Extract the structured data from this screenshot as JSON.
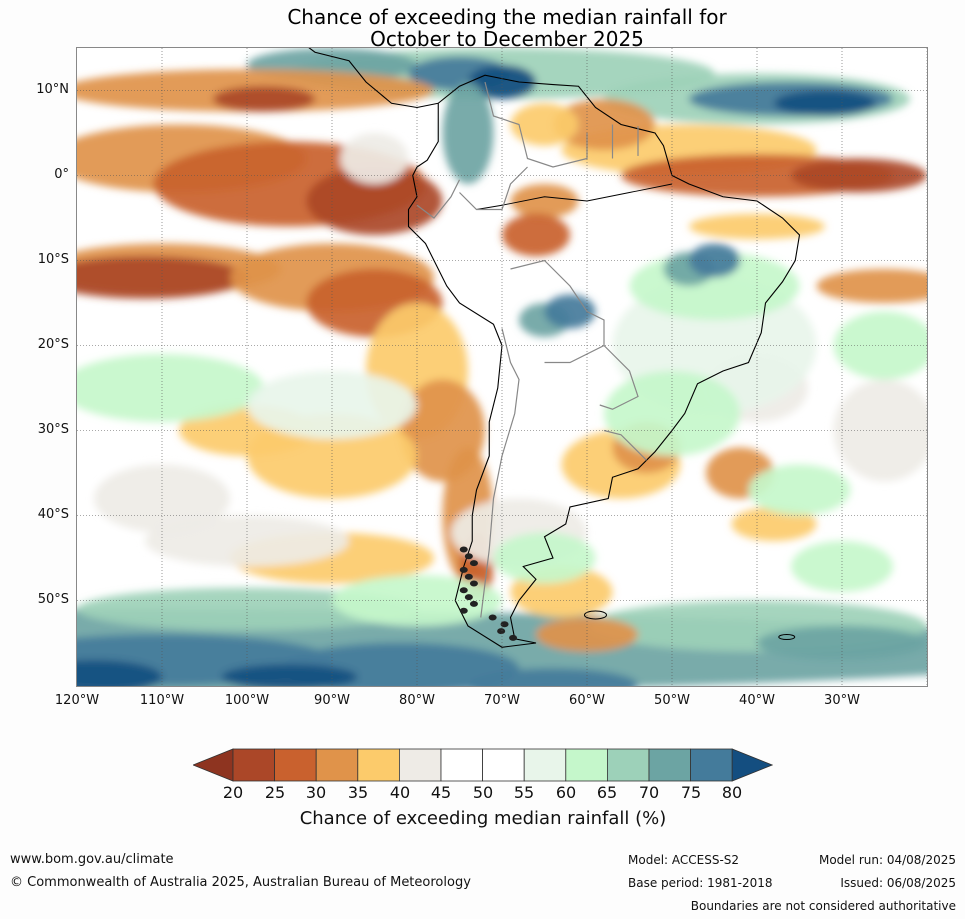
{
  "title": {
    "line1": "Chance of exceeding the median rainfall for",
    "line2": "October to December 2025"
  },
  "map": {
    "region": "South America and adjacent oceans",
    "lon_range": [
      -120,
      -20
    ],
    "lat_range": [
      -60,
      15
    ],
    "lat_labels": [
      "10°N",
      "0°",
      "10°S",
      "20°S",
      "30°S",
      "40°S",
      "50°S"
    ],
    "lon_labels": [
      "120°W",
      "110°W",
      "100°W",
      "90°W",
      "80°W",
      "70°W",
      "60°W",
      "50°W",
      "40°W",
      "30°W"
    ],
    "gridlines": "dotted"
  },
  "legend": {
    "ticks": [
      "20",
      "25",
      "30",
      "35",
      "40",
      "45",
      "50",
      "55",
      "60",
      "65",
      "70",
      "75",
      "80"
    ],
    "colors": [
      "#8e3420",
      "#ab4728",
      "#c9612e",
      "#e0934a",
      "#fccb6b",
      "#eeebe6",
      "#ffffff",
      "#ffffff",
      "#e8f5ea",
      "#c5f7cb",
      "#9dd1b9",
      "#6ca4a3",
      "#447b9b",
      "#144e80"
    ],
    "label": "Chance of exceeding median rainfall (%)"
  },
  "footer": {
    "website": "www.bom.gov.au/climate",
    "copyright": "© Commonwealth of Australia 2025, Australian Bureau of Meteorology",
    "model": "Model: ACCESS-S2",
    "base_period": "Base period: 1981-2018",
    "model_run": "Model run: 04/08/2025",
    "issued": "Issued: 06/08/2025",
    "disclaimer": "Boundaries are not considered authoritative"
  }
}
